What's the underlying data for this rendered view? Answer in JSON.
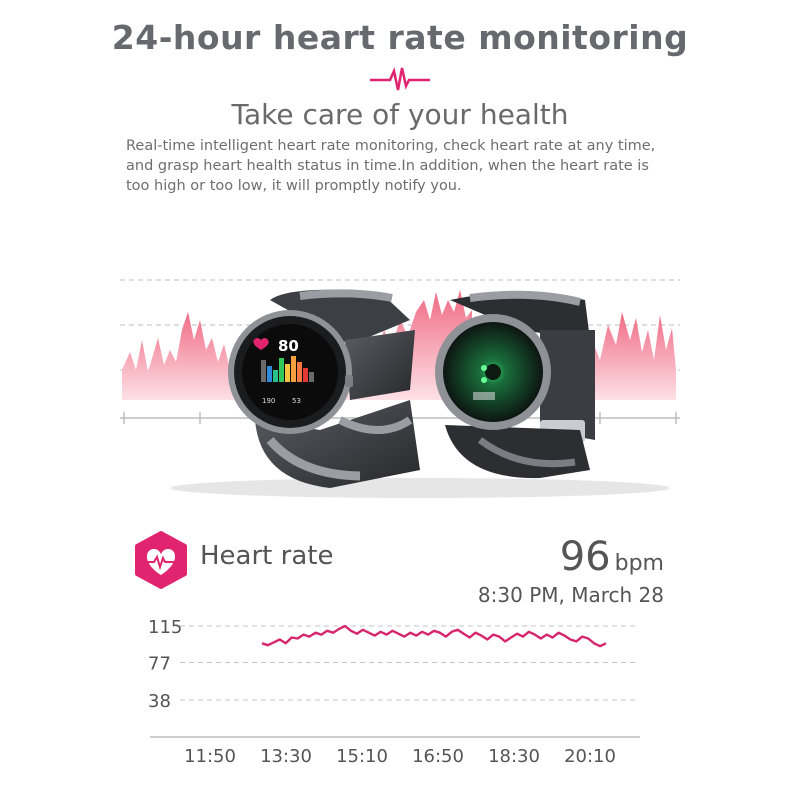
{
  "header": {
    "title": "24-hour heart rate monitoring",
    "subtitle": "Take care of your health",
    "description_lines": [
      "Real-time intelligent heart rate monitoring, check heart rate at any time,",
      "and grasp heart health status in time.In addition, when the heart rate is",
      "too high or too low, it will promptly notify you."
    ]
  },
  "watch_screen": {
    "heart_value": "80",
    "max_value": "190",
    "min_value": "53"
  },
  "heart_rate_card": {
    "label": "Heart rate",
    "value": "96",
    "unit": "bpm",
    "timestamp": "8:30 PM, March 28"
  },
  "colors": {
    "accent": "#e0246f",
    "text": "#555555",
    "wave_pink": "#f28a9c"
  },
  "chart_data": {
    "type": "line",
    "y_ticks": [
      "115",
      "77",
      "38"
    ],
    "x_ticks": [
      "11:50",
      "13:30",
      "15:10",
      "16:50",
      "18:30",
      "20:10"
    ],
    "ylim": [
      38,
      115
    ],
    "series": [
      {
        "values": [
          97,
          95,
          98,
          101,
          97,
          103,
          102,
          106,
          104,
          108,
          106,
          110,
          108,
          112,
          115,
          110,
          107,
          111,
          108,
          105,
          109,
          106,
          110,
          107,
          104,
          108,
          105,
          109,
          106,
          110,
          108,
          104,
          109,
          111,
          107,
          103,
          108,
          105,
          101,
          106,
          104,
          99,
          103,
          107,
          104,
          109,
          106,
          102,
          106,
          103,
          108,
          105,
          101,
          99,
          104,
          102,
          97,
          94,
          97
        ]
      }
    ]
  }
}
